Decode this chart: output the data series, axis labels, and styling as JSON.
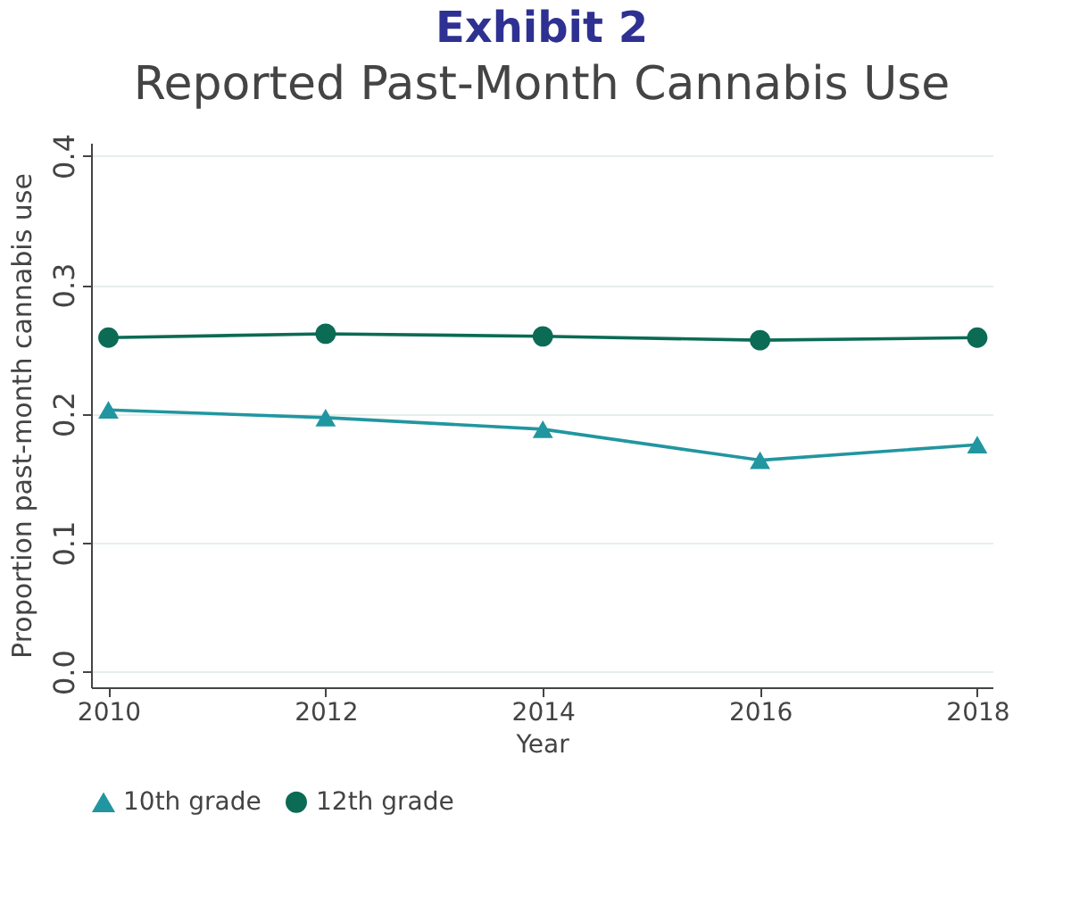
{
  "chart_data": {
    "type": "line",
    "title": "Exhibit 2",
    "subtitle": "Reported Past-Month Cannabis Use",
    "xlabel": "Year",
    "ylabel": "Proportion past-month cannabis use",
    "x": [
      2010,
      2012,
      2014,
      2016,
      2018
    ],
    "series": [
      {
        "name": "10th grade",
        "color": "#2196a0",
        "marker": "triangle",
        "values": [
          0.203,
          0.197,
          0.188,
          0.164,
          0.176
        ]
      },
      {
        "name": "12th grade",
        "color": "#0b6b55",
        "marker": "circle",
        "values": [
          0.259,
          0.262,
          0.26,
          0.257,
          0.259
        ]
      }
    ],
    "xlim": [
      2009.84,
      2018.14
    ],
    "xticks": [
      2010,
      2012,
      2014,
      2016,
      2018
    ],
    "ylim": [
      -0.012,
      0.41
    ],
    "yticks": [
      {
        "value": 0,
        "label": "0.0"
      },
      {
        "value": 0.1,
        "label": "0.1"
      },
      {
        "value": 0.2,
        "label": "0.2"
      },
      {
        "value": 0.3,
        "label": "0.3"
      },
      {
        "value": 0.4,
        "label": "0.4"
      }
    ],
    "grid": "y",
    "legend": "bottom",
    "line_style": "solid"
  }
}
